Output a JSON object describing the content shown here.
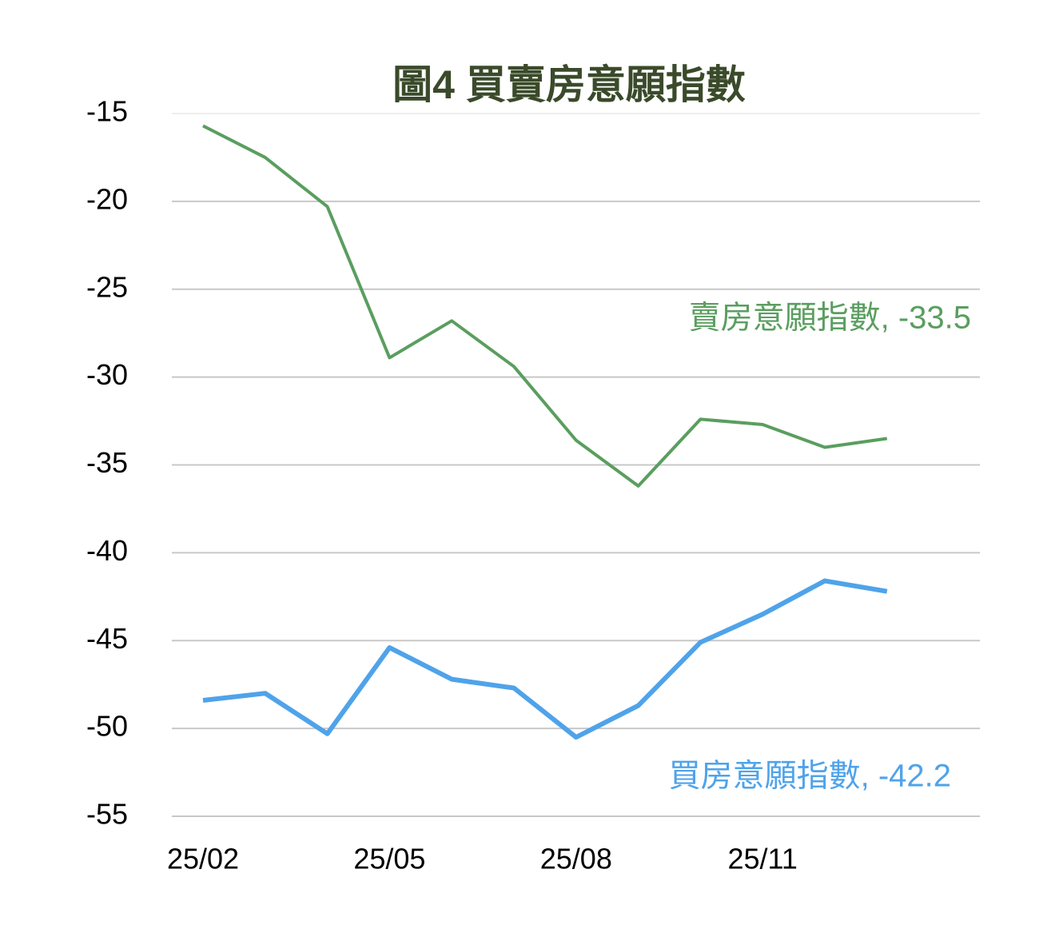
{
  "chart_data": {
    "type": "line",
    "title": "圖4  買賣房意願指數",
    "categories": [
      "25/02",
      null,
      null,
      "25/05",
      null,
      null,
      "25/08",
      null,
      null,
      "25/11",
      null,
      null
    ],
    "series": [
      {
        "label": "賣房意願指數, -33.5",
        "color": "#5a9e5f",
        "values": [
          -15.7,
          -17.5,
          -20.3,
          -28.9,
          -26.8,
          -29.4,
          -33.6,
          -36.2,
          -32.4,
          -32.7,
          -34.0,
          -33.5
        ]
      },
      {
        "label": "買房意願指數, -42.2",
        "color": "#4fa3ea",
        "values": [
          -48.4,
          -48.0,
          -50.3,
          -45.4,
          -47.2,
          -47.7,
          -50.5,
          -48.7,
          -45.1,
          -43.5,
          -41.6,
          -42.2
        ]
      }
    ],
    "ylim": [
      -55,
      -15
    ],
    "yticks": [
      -55,
      -50,
      -45,
      -40,
      -35,
      -30,
      -25,
      -20,
      -15
    ],
    "grid": true
  }
}
